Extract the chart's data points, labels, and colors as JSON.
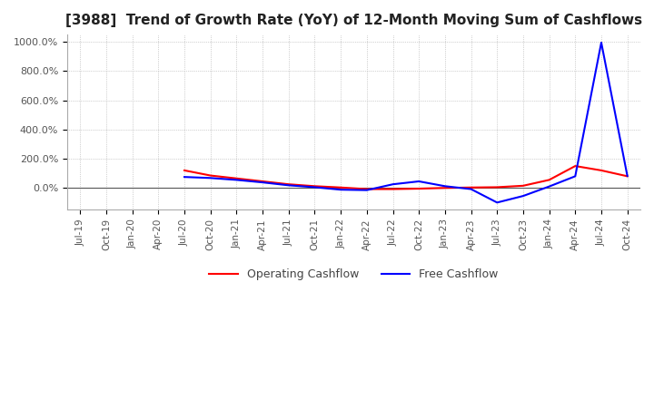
{
  "title": "[3988]  Trend of Growth Rate (YoY) of 12-Month Moving Sum of Cashflows",
  "title_fontsize": 11,
  "ylim": [
    -150,
    1050
  ],
  "yticks": [
    0,
    200,
    400,
    600,
    800,
    1000
  ],
  "ytick_labels": [
    "0.0%",
    "200.0%",
    "400.0%",
    "600.0%",
    "800.0%",
    "1000.0%"
  ],
  "background_color": "#ffffff",
  "grid_color": "#aaaaaa",
  "legend_labels": [
    "Operating Cashflow",
    "Free Cashflow"
  ],
  "line_colors": [
    "#ff0000",
    "#0000ff"
  ],
  "x_labels": [
    "Jul-19",
    "Oct-19",
    "Jan-20",
    "Apr-20",
    "Jul-20",
    "Oct-20",
    "Jan-21",
    "Apr-21",
    "Jul-21",
    "Oct-21",
    "Jan-22",
    "Apr-22",
    "Jul-22",
    "Oct-22",
    "Jan-23",
    "Apr-23",
    "Jul-23",
    "Oct-23",
    "Jan-24",
    "Apr-24",
    "Jul-24",
    "Oct-24"
  ],
  "operating_cf": [
    null,
    null,
    null,
    null,
    120,
    85,
    65,
    45,
    25,
    12,
    3,
    -8,
    -8,
    -5,
    0,
    3,
    5,
    15,
    55,
    150,
    120,
    80
  ],
  "free_cf": [
    null,
    null,
    null,
    null,
    75,
    68,
    55,
    38,
    18,
    5,
    -12,
    -15,
    25,
    45,
    12,
    -8,
    -100,
    -55,
    10,
    80,
    995,
    82
  ]
}
